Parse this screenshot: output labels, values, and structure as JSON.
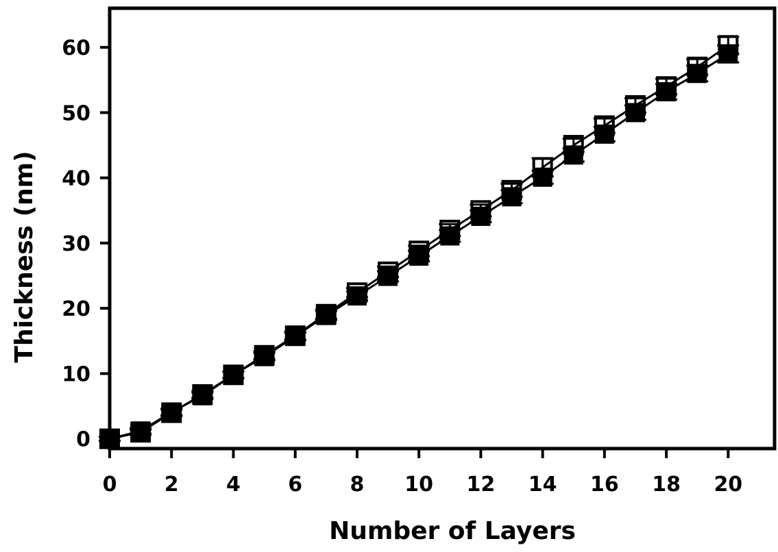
{
  "chart_data": {
    "type": "line",
    "title": "",
    "xlabel": "Number of Layers",
    "ylabel": "Thickness (nm)",
    "xlim": [
      0,
      21.5
    ],
    "ylim": [
      -1.5,
      66
    ],
    "x_ticks": [
      0,
      2,
      4,
      6,
      8,
      10,
      12,
      14,
      16,
      18,
      20
    ],
    "y_ticks": [
      0,
      10,
      20,
      30,
      40,
      50,
      60
    ],
    "grid": false,
    "legend": "none",
    "x": [
      0,
      1,
      2,
      3,
      4,
      5,
      6,
      7,
      8,
      9,
      10,
      11,
      12,
      13,
      14,
      15,
      16,
      17,
      18,
      19,
      20
    ],
    "series": [
      {
        "marker": "filled-square",
        "color": "#000000",
        "values": [
          0,
          1.2,
          4.1,
          6.6,
          9.8,
          12.6,
          15.7,
          18.9,
          21.9,
          24.9,
          28.0,
          31.1,
          34.1,
          37.1,
          40.1,
          43.5,
          46.7,
          50.0,
          53.2,
          56.0,
          59.0
        ],
        "error": [
          0.3,
          0.4,
          0.5,
          0.5,
          0.5,
          0.6,
          0.6,
          0.7,
          0.7,
          0.8,
          0.8,
          0.9,
          0.9,
          1.0,
          1.0,
          1.0,
          1.1,
          1.1,
          1.2,
          1.2,
          1.3
        ]
      },
      {
        "marker": "open-square",
        "color": "#000000",
        "values": [
          0,
          1.0,
          4.0,
          6.8,
          9.8,
          12.8,
          15.8,
          19.1,
          22.4,
          25.6,
          28.8,
          32.0,
          35.0,
          38.1,
          41.6,
          45.0,
          48.0,
          51.1,
          54.0,
          57.0,
          60.3
        ],
        "error": [
          0.3,
          0.4,
          0.5,
          0.5,
          0.5,
          0.6,
          0.6,
          0.7,
          0.7,
          0.8,
          0.8,
          0.9,
          0.9,
          1.0,
          1.4,
          1.0,
          1.1,
          1.1,
          1.2,
          1.2,
          1.3
        ]
      }
    ]
  }
}
